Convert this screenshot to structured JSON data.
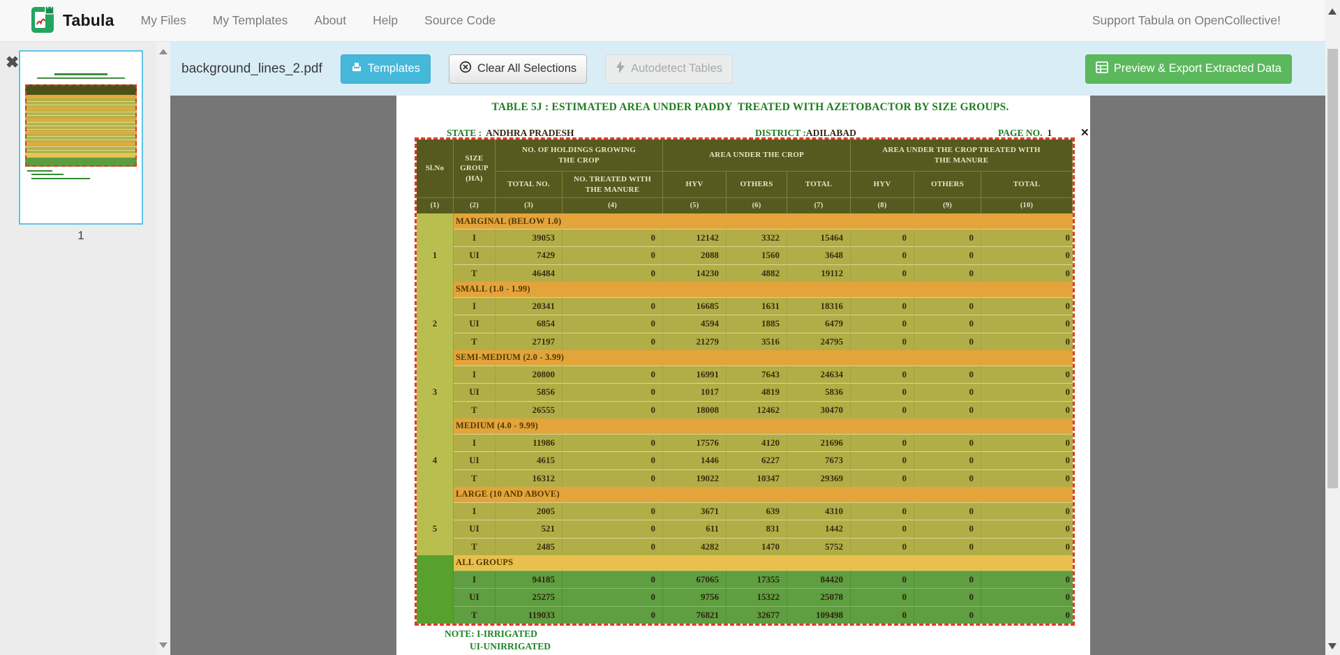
{
  "navbar": {
    "brand": "Tabula",
    "items": [
      "My Files",
      "My Templates",
      "About",
      "Help",
      "Source Code"
    ],
    "support": "Support Tabula on OpenCollective!"
  },
  "toolbar": {
    "filename": "background_lines_2.pdf",
    "templates": "Templates",
    "clear": "Clear All Selections",
    "autodetect": "Autodetect Tables",
    "export": "Preview & Export Extracted Data"
  },
  "sidebar": {
    "page_label": "1"
  },
  "page": {
    "title": "TABLE 5J : ESTIMATED AREA UNDER PADDY  TREATED WITH AZETOBACTOR BY SIZE GROUPS.",
    "state_label": "STATE :",
    "state_value": "ANDHRA PRADESH",
    "district_label": "DISTRICT :",
    "district_value": "ADILABAD",
    "page_no_label": "PAGE NO.",
    "page_no_value": "1",
    "note_line1": "NOTE: I-IRRIGATED",
    "note_line2": "UI-UNIRRIGATED"
  },
  "table": {
    "header": {
      "slno": "Sl.No",
      "size_group": "SIZE\nGROUP\n(HA)",
      "holdings_group": "NO. OF HOLDINGS GROWING\nTHE CROP",
      "area_group": "AREA UNDER THE CROP",
      "treated_group": "AREA UNDER THE CROP TREATED WITH\nTHE  MANURE",
      "sub": [
        "TOTAL NO.",
        "NO. TREATED WITH\nTHE  MANURE",
        "HYV",
        "OTHERS",
        "TOTAL",
        "HYV",
        "OTHERS",
        "TOTAL"
      ],
      "col_numbers": [
        "(1)",
        "(2)",
        "(3)",
        "(4)",
        "(5)",
        "(6)",
        "(7)",
        "(8)",
        "(9)",
        "(10)"
      ]
    },
    "row_labels": [
      "I",
      "UI",
      "T"
    ],
    "groups": [
      {
        "slno": "1",
        "band": "MARGINAL (BELOW 1.0)",
        "all": false,
        "rows": [
          [
            "39053",
            "0",
            "12142",
            "3322",
            "15464",
            "0",
            "0",
            "0"
          ],
          [
            "7429",
            "0",
            "2088",
            "1560",
            "3648",
            "0",
            "0",
            "0"
          ],
          [
            "46484",
            "0",
            "14230",
            "4882",
            "19112",
            "0",
            "0",
            "0"
          ]
        ]
      },
      {
        "slno": "2",
        "band": "SMALL (1.0 - 1.99)",
        "all": false,
        "rows": [
          [
            "20341",
            "0",
            "16685",
            "1631",
            "18316",
            "0",
            "0",
            "0"
          ],
          [
            "6854",
            "0",
            "4594",
            "1885",
            "6479",
            "0",
            "0",
            "0"
          ],
          [
            "27197",
            "0",
            "21279",
            "3516",
            "24795",
            "0",
            "0",
            "0"
          ]
        ]
      },
      {
        "slno": "3",
        "band": "SEMI-MEDIUM (2.0 - 3.99)",
        "all": false,
        "rows": [
          [
            "20800",
            "0",
            "16991",
            "7643",
            "24634",
            "0",
            "0",
            "0"
          ],
          [
            "5856",
            "0",
            "1017",
            "4819",
            "5836",
            "0",
            "0",
            "0"
          ],
          [
            "26555",
            "0",
            "18008",
            "12462",
            "30470",
            "0",
            "0",
            "0"
          ]
        ]
      },
      {
        "slno": "4",
        "band": "MEDIUM (4.0 - 9.99)",
        "all": false,
        "rows": [
          [
            "11986",
            "0",
            "17576",
            "4120",
            "21696",
            "0",
            "0",
            "0"
          ],
          [
            "4615",
            "0",
            "1446",
            "6227",
            "7673",
            "0",
            "0",
            "0"
          ],
          [
            "16312",
            "0",
            "19022",
            "10347",
            "29369",
            "0",
            "0",
            "0"
          ]
        ]
      },
      {
        "slno": "5",
        "band": "LARGE (10 AND ABOVE)",
        "all": false,
        "rows": [
          [
            "2005",
            "0",
            "3671",
            "639",
            "4310",
            "0",
            "0",
            "0"
          ],
          [
            "521",
            "0",
            "611",
            "831",
            "1442",
            "0",
            "0",
            "0"
          ],
          [
            "2485",
            "0",
            "4282",
            "1470",
            "5752",
            "0",
            "0",
            "0"
          ]
        ]
      },
      {
        "slno": "",
        "band": "ALL GROUPS",
        "all": true,
        "rows": [
          [
            "94185",
            "0",
            "67065",
            "17355",
            "84420",
            "0",
            "0",
            "0"
          ],
          [
            "25275",
            "0",
            "9756",
            "15322",
            "25078",
            "0",
            "0",
            "0"
          ],
          [
            "119033",
            "0",
            "76821",
            "32677",
            "109498",
            "0",
            "0",
            "0"
          ]
        ]
      }
    ]
  },
  "colors": {
    "selection_red": "#df3a26",
    "header_olive": "#565a1e",
    "row_olive": "#b2ae47",
    "band_orange": "#e3a43c",
    "all_groups_green": "#5f9e41",
    "note_green": "#1e8426",
    "templates_blue": "#46b8da",
    "export_green": "#5cb85c",
    "toolbar_blue": "#d9edf7"
  }
}
